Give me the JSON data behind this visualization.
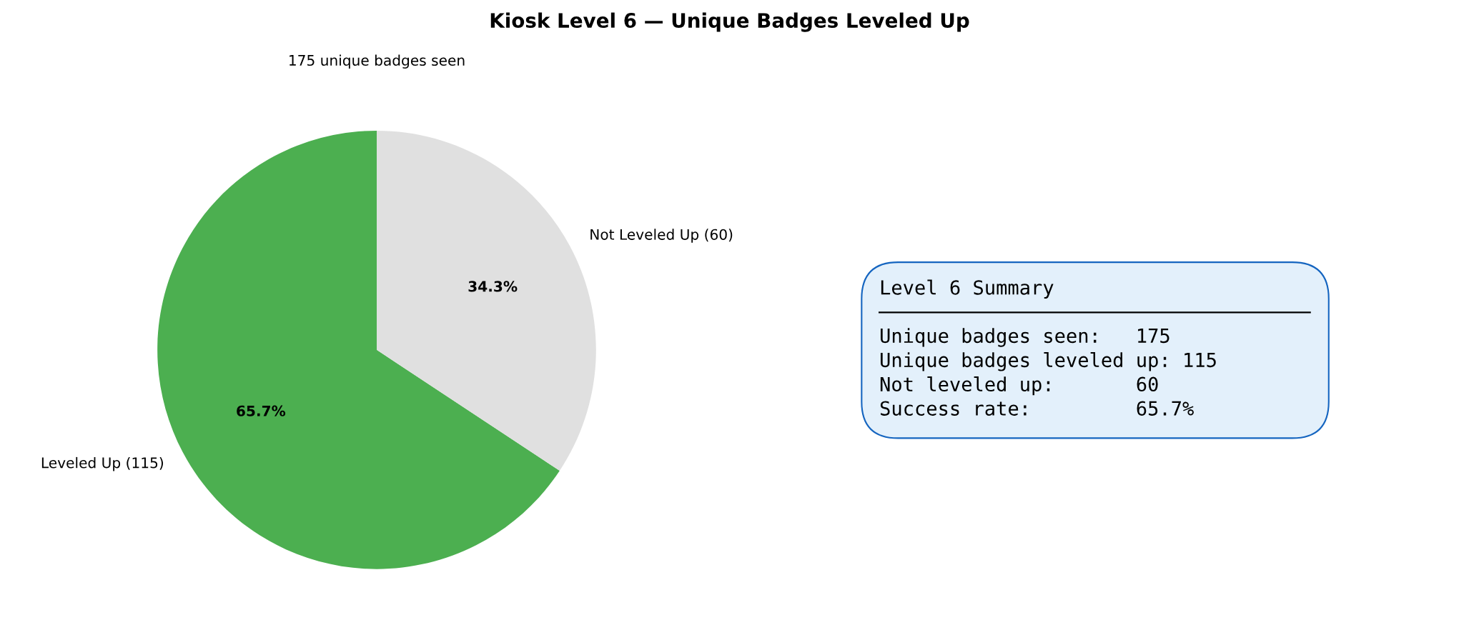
{
  "chart_data": [
    {
      "type": "pie",
      "title": "Kiosk Level 6 — Unique Badges Leveled Up",
      "subtitle": "175 unique badges seen",
      "categories": [
        "Leveled Up (115)",
        "Not Leveled Up (60)"
      ],
      "values": [
        65.7,
        34.3
      ],
      "colors": [
        "#4caf50",
        "#e0e0e0"
      ],
      "value_labels": [
        "65.7%",
        "34.3%"
      ],
      "legend": false
    },
    {
      "type": "other",
      "title": "Level 6 Summary",
      "annotations": [
        "Unique badges seen:   175",
        "Unique badges leveled up: 115",
        "Not leveled up:       60",
        "Success rate:         65.7%"
      ]
    }
  ]
}
